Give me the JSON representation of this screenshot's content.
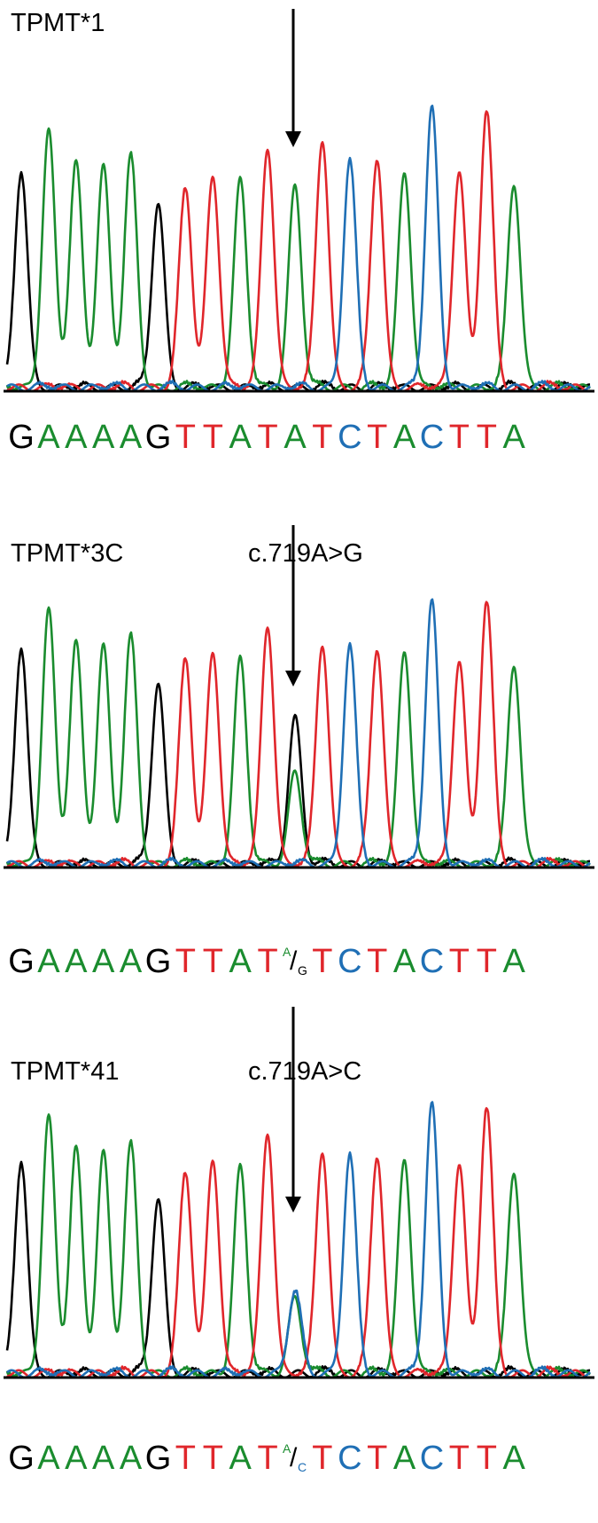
{
  "colors": {
    "A": "#1a8c2e",
    "C": "#1f6fb5",
    "G": "#000000",
    "T": "#e0262b",
    "axis": "#000000"
  },
  "panels": [
    {
      "sample": "TPMT*1",
      "variant": "",
      "sequence": [
        "G",
        "A",
        "A",
        "A",
        "A",
        "G",
        "T",
        "T",
        "A",
        "T",
        "A",
        "T",
        "C",
        "T",
        "A",
        "C",
        "T",
        "T",
        "A"
      ],
      "variant_index": 10
    },
    {
      "sample": "TPMT*3C",
      "variant": "c.719A>G",
      "sequence": [
        "G",
        "A",
        "A",
        "A",
        "A",
        "G",
        "T",
        "T",
        "A",
        "T",
        {
          "sup": "A",
          "sub": "G"
        },
        "T",
        "C",
        "T",
        "A",
        "C",
        "T",
        "T",
        "A"
      ],
      "variant_index": 10
    },
    {
      "sample": "TPMT*41",
      "variant": "c.719A>C",
      "sequence": [
        "G",
        "A",
        "A",
        "A",
        "A",
        "G",
        "T",
        "T",
        "A",
        "T",
        {
          "sup": "A",
          "sub": "C"
        },
        "T",
        "C",
        "T",
        "A",
        "C",
        "T",
        "T",
        "A"
      ],
      "variant_index": 10
    }
  ],
  "chart_data": [
    {
      "type": "line",
      "title": "TPMT*1",
      "x": [
        1,
        2,
        3,
        4,
        5,
        6,
        7,
        8,
        9,
        10,
        11,
        12,
        13,
        14,
        15,
        16,
        17,
        18,
        19
      ],
      "series": [
        {
          "name": "",
          "base": "G",
          "values": [
            {
              "x": 1,
              "y": 0.77
            },
            {
              "x": 6,
              "y": 0.66
            }
          ]
        },
        {
          "name": "",
          "base": "A",
          "values": [
            {
              "x": 2,
              "y": 0.92
            },
            {
              "x": 3,
              "y": 0.8
            },
            {
              "x": 4,
              "y": 0.79
            },
            {
              "x": 5,
              "y": 0.82
            },
            {
              "x": 9,
              "y": 0.74
            },
            {
              "x": 11,
              "y": 0.72
            },
            {
              "x": 15,
              "y": 0.77
            },
            {
              "x": 19,
              "y": 0.73
            }
          ]
        },
        {
          "name": "",
          "base": "T",
          "values": [
            {
              "x": 7,
              "y": 0.71
            },
            {
              "x": 8,
              "y": 0.76
            },
            {
              "x": 10,
              "y": 0.86
            },
            {
              "x": 12,
              "y": 0.89
            },
            {
              "x": 14,
              "y": 0.82
            },
            {
              "x": 17,
              "y": 0.78
            },
            {
              "x": 18,
              "y": 0.99
            }
          ]
        },
        {
          "name": "",
          "base": "C",
          "values": [
            {
              "x": 13,
              "y": 0.81
            },
            {
              "x": 16,
              "y": 1.0
            }
          ]
        }
      ],
      "secondary": [],
      "ylim": [
        0,
        1.05
      ]
    },
    {
      "type": "line",
      "title": "TPMT*3C",
      "x": [
        1,
        2,
        3,
        4,
        5,
        6,
        7,
        8,
        9,
        10,
        11,
        12,
        13,
        14,
        15,
        16,
        17,
        18,
        19
      ],
      "series": [
        {
          "name": "",
          "base": "G",
          "values": [
            {
              "x": 1,
              "y": 0.82
            },
            {
              "x": 6,
              "y": 0.69
            },
            {
              "x": 11,
              "y": 0.56
            }
          ]
        },
        {
          "name": "",
          "base": "A",
          "values": [
            {
              "x": 2,
              "y": 0.97
            },
            {
              "x": 3,
              "y": 0.84
            },
            {
              "x": 4,
              "y": 0.83
            },
            {
              "x": 5,
              "y": 0.86
            },
            {
              "x": 9,
              "y": 0.78
            },
            {
              "x": 11,
              "y": 0.35
            },
            {
              "x": 15,
              "y": 0.81
            },
            {
              "x": 19,
              "y": 0.76
            }
          ]
        },
        {
          "name": "",
          "base": "T",
          "values": [
            {
              "x": 7,
              "y": 0.78
            },
            {
              "x": 8,
              "y": 0.81
            },
            {
              "x": 10,
              "y": 0.91
            },
            {
              "x": 12,
              "y": 0.84
            },
            {
              "x": 14,
              "y": 0.82
            },
            {
              "x": 17,
              "y": 0.78
            },
            {
              "x": 18,
              "y": 1.0
            }
          ]
        },
        {
          "name": "",
          "base": "C",
          "values": [
            {
              "x": 13,
              "y": 0.83
            },
            {
              "x": 16,
              "y": 1.0
            }
          ]
        }
      ],
      "ylim": [
        0,
        1.05
      ]
    },
    {
      "type": "line",
      "title": "TPMT*41",
      "x": [
        1,
        2,
        3,
        4,
        5,
        6,
        7,
        8,
        9,
        10,
        11,
        12,
        13,
        14,
        15,
        16,
        17,
        18,
        19
      ],
      "series": [
        {
          "name": "",
          "base": "G",
          "values": [
            {
              "x": 1,
              "y": 0.7
            },
            {
              "x": 6,
              "y": 0.58
            }
          ]
        },
        {
          "name": "",
          "base": "A",
          "values": [
            {
              "x": 2,
              "y": 0.85
            },
            {
              "x": 3,
              "y": 0.74
            },
            {
              "x": 4,
              "y": 0.73
            },
            {
              "x": 5,
              "y": 0.75
            },
            {
              "x": 9,
              "y": 0.68
            },
            {
              "x": 11,
              "y": 0.25
            },
            {
              "x": 15,
              "y": 0.71
            },
            {
              "x": 19,
              "y": 0.67
            }
          ]
        },
        {
          "name": "",
          "base": "T",
          "values": [
            {
              "x": 7,
              "y": 0.66
            },
            {
              "x": 8,
              "y": 0.71
            },
            {
              "x": 10,
              "y": 0.8
            },
            {
              "x": 12,
              "y": 0.74
            },
            {
              "x": 14,
              "y": 0.72
            },
            {
              "x": 17,
              "y": 0.7
            },
            {
              "x": 18,
              "y": 0.88
            }
          ]
        },
        {
          "name": "",
          "base": "C",
          "values": [
            {
              "x": 11,
              "y": 0.27
            },
            {
              "x": 13,
              "y": 0.72
            },
            {
              "x": 16,
              "y": 0.89
            }
          ]
        }
      ],
      "ylim": [
        0,
        1.05
      ]
    }
  ]
}
